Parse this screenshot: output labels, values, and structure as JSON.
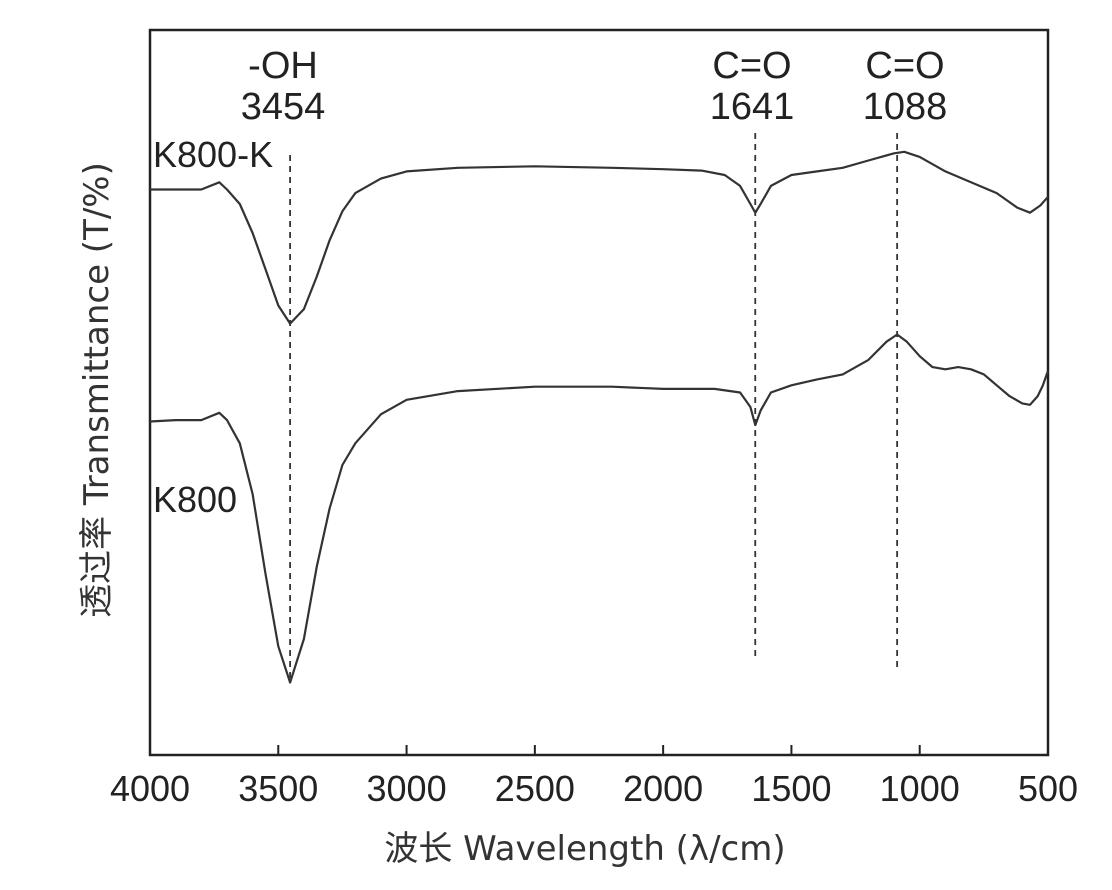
{
  "chart_data": {
    "type": "line",
    "xlabel": "波长 Wavelength (λ/cm)",
    "ylabel": "透过率 Transmittance (T/%)",
    "xlim": [
      4000,
      500
    ],
    "xticks": [
      "4000",
      "3500",
      "3000",
      "2500",
      "2000",
      "1500",
      "1000",
      "500"
    ],
    "grid": false,
    "annotations": [
      {
        "group": "-OH",
        "wavenumber": "3454",
        "x": 3454
      },
      {
        "group": "C=O",
        "wavenumber": "1641",
        "x": 1641
      },
      {
        "group": "C=O",
        "wavenumber": "1088",
        "x": 1088
      }
    ],
    "series": [
      {
        "name": "K800-K",
        "color": "#333333",
        "points": [
          [
            4000,
            0.78
          ],
          [
            3900,
            0.78
          ],
          [
            3800,
            0.78
          ],
          [
            3730,
            0.79
          ],
          [
            3700,
            0.78
          ],
          [
            3650,
            0.76
          ],
          [
            3600,
            0.72
          ],
          [
            3550,
            0.67
          ],
          [
            3500,
            0.62
          ],
          [
            3454,
            0.595
          ],
          [
            3400,
            0.615
          ],
          [
            3350,
            0.66
          ],
          [
            3300,
            0.71
          ],
          [
            3250,
            0.75
          ],
          [
            3200,
            0.775
          ],
          [
            3100,
            0.795
          ],
          [
            3000,
            0.805
          ],
          [
            2800,
            0.81
          ],
          [
            2500,
            0.812
          ],
          [
            2200,
            0.81
          ],
          [
            2000,
            0.808
          ],
          [
            1850,
            0.806
          ],
          [
            1760,
            0.8
          ],
          [
            1700,
            0.785
          ],
          [
            1660,
            0.76
          ],
          [
            1641,
            0.748
          ],
          [
            1620,
            0.76
          ],
          [
            1580,
            0.785
          ],
          [
            1500,
            0.8
          ],
          [
            1400,
            0.805
          ],
          [
            1300,
            0.81
          ],
          [
            1200,
            0.82
          ],
          [
            1100,
            0.83
          ],
          [
            1060,
            0.832
          ],
          [
            1000,
            0.825
          ],
          [
            900,
            0.805
          ],
          [
            800,
            0.79
          ],
          [
            700,
            0.775
          ],
          [
            620,
            0.755
          ],
          [
            570,
            0.748
          ],
          [
            530,
            0.758
          ],
          [
            500,
            0.77
          ]
        ]
      },
      {
        "name": "K800",
        "color": "#333333",
        "points": [
          [
            4000,
            0.46
          ],
          [
            3900,
            0.462
          ],
          [
            3800,
            0.462
          ],
          [
            3730,
            0.472
          ],
          [
            3700,
            0.462
          ],
          [
            3650,
            0.43
          ],
          [
            3600,
            0.36
          ],
          [
            3550,
            0.25
          ],
          [
            3500,
            0.15
          ],
          [
            3454,
            0.1
          ],
          [
            3400,
            0.16
          ],
          [
            3350,
            0.26
          ],
          [
            3300,
            0.34
          ],
          [
            3250,
            0.4
          ],
          [
            3200,
            0.43
          ],
          [
            3100,
            0.47
          ],
          [
            3000,
            0.49
          ],
          [
            2800,
            0.502
          ],
          [
            2500,
            0.508
          ],
          [
            2200,
            0.508
          ],
          [
            2000,
            0.505
          ],
          [
            1800,
            0.505
          ],
          [
            1700,
            0.5
          ],
          [
            1660,
            0.48
          ],
          [
            1641,
            0.455
          ],
          [
            1620,
            0.475
          ],
          [
            1580,
            0.5
          ],
          [
            1500,
            0.51
          ],
          [
            1400,
            0.518
          ],
          [
            1300,
            0.525
          ],
          [
            1200,
            0.545
          ],
          [
            1130,
            0.57
          ],
          [
            1088,
            0.58
          ],
          [
            1050,
            0.57
          ],
          [
            1000,
            0.55
          ],
          [
            950,
            0.535
          ],
          [
            900,
            0.532
          ],
          [
            850,
            0.535
          ],
          [
            800,
            0.532
          ],
          [
            750,
            0.525
          ],
          [
            700,
            0.51
          ],
          [
            650,
            0.495
          ],
          [
            600,
            0.485
          ],
          [
            570,
            0.483
          ],
          [
            540,
            0.495
          ],
          [
            520,
            0.51
          ],
          [
            500,
            0.53
          ]
        ]
      }
    ]
  }
}
